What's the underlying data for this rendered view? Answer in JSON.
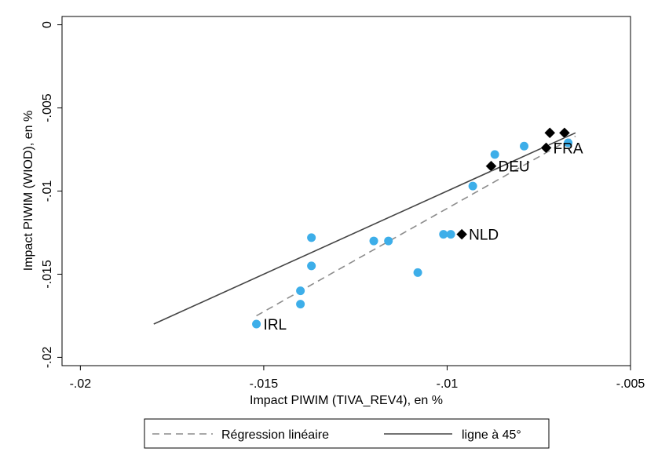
{
  "chart_data": {
    "type": "scatter",
    "xlabel": "Impact PIWIM (TIVA_REV4), en %",
    "ylabel": "Impact PIWIM (WIOD), en %",
    "xlim": [
      -0.0205,
      -0.005
    ],
    "ylim": [
      -0.0205,
      0.0005
    ],
    "xticks": [
      -0.02,
      -0.015,
      -0.01,
      -0.005
    ],
    "xtick_labels": [
      "-.02",
      "-.015",
      "-.01",
      "-.005"
    ],
    "yticks": [
      0,
      -0.005,
      -0.01,
      -0.015,
      -0.02
    ],
    "ytick_labels": [
      "0",
      "-.005",
      "-.01",
      "-.015",
      "-.02"
    ],
    "grid": false,
    "legend_position": "bottom",
    "colors": {
      "blue_points": "#3daee9",
      "diamonds": "#000000",
      "regression": "#8c8c8c",
      "line45": "#444444"
    },
    "blue_points": [
      {
        "x": -0.0152,
        "y": -0.018
      },
      {
        "x": -0.014,
        "y": -0.0168
      },
      {
        "x": -0.014,
        "y": -0.016
      },
      {
        "x": -0.0137,
        "y": -0.0145
      },
      {
        "x": -0.0137,
        "y": -0.0128
      },
      {
        "x": -0.012,
        "y": -0.013
      },
      {
        "x": -0.0116,
        "y": -0.013
      },
      {
        "x": -0.0108,
        "y": -0.0149
      },
      {
        "x": -0.0101,
        "y": -0.0126
      },
      {
        "x": -0.0099,
        "y": -0.0126
      },
      {
        "x": -0.0093,
        "y": -0.0097
      },
      {
        "x": -0.0087,
        "y": -0.0078
      },
      {
        "x": -0.0079,
        "y": -0.0073
      },
      {
        "x": -0.0067,
        "y": -0.0071
      }
    ],
    "diamond_points": [
      {
        "x": -0.0096,
        "y": -0.0126
      },
      {
        "x": -0.0088,
        "y": -0.0085
      },
      {
        "x": -0.0073,
        "y": -0.0074
      },
      {
        "x": -0.0072,
        "y": -0.0065
      },
      {
        "x": -0.0068,
        "y": -0.0065
      }
    ],
    "point_labels": [
      {
        "text": "IRL",
        "x": -0.0152,
        "y": -0.018,
        "color": "#3daee9"
      },
      {
        "text": "NLD",
        "x": -0.0096,
        "y": -0.0126,
        "color": "#000000"
      },
      {
        "text": "DEU",
        "x": -0.0088,
        "y": -0.0085,
        "color": "#000000"
      },
      {
        "text": "FRA",
        "x": -0.0073,
        "y": -0.0074,
        "color": "#000000"
      }
    ],
    "series": [
      {
        "name": "Régression linéaire",
        "x": [
          -0.0152,
          -0.0065
        ],
        "y": [
          -0.0175,
          -0.0067
        ]
      },
      {
        "name": "ligne à 45°",
        "x": [
          -0.018,
          -0.0065
        ],
        "y": [
          -0.018,
          -0.0065
        ]
      }
    ]
  }
}
